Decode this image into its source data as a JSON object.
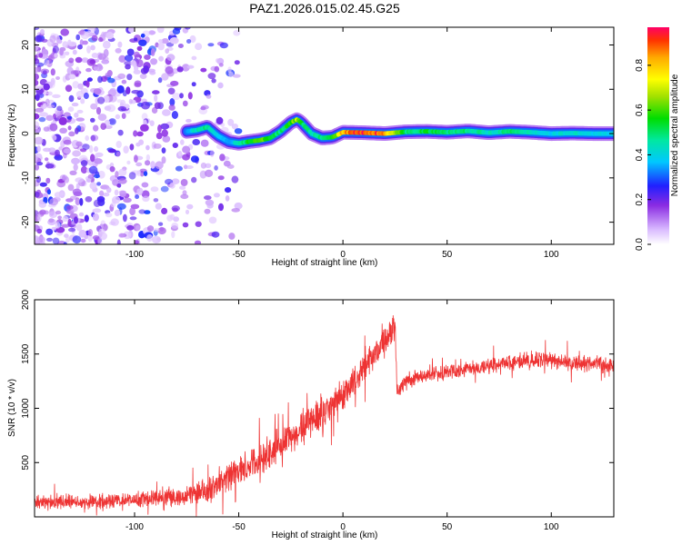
{
  "figure_title": "PAZ1.2026.015.02.45.G25",
  "chart_data": [
    {
      "type": "heatmap",
      "title": "",
      "xlabel": "Height of straight line (km)",
      "ylabel": "Frequency (Hz)",
      "xlim": [
        -148,
        130
      ],
      "ylim": [
        -25,
        24
      ],
      "xticks": [
        -100,
        -50,
        0,
        50,
        100
      ],
      "yticks": [
        -20,
        -10,
        0,
        10,
        20
      ],
      "colorbar": {
        "label": "Normalized spectral amplitude",
        "range": [
          0.0,
          0.97
        ],
        "ticks": [
          0.0,
          0.2,
          0.4,
          0.6,
          0.8
        ]
      },
      "ridge": {
        "description": "dominant frequency track",
        "x": [
          -75,
          -70,
          -65,
          -60,
          -55,
          -50,
          -45,
          -40,
          -35,
          -30,
          -25,
          -22,
          -20,
          -15,
          -10,
          -5,
          0,
          10,
          20,
          30,
          40,
          50,
          60,
          70,
          80,
          90,
          100,
          110,
          120,
          130
        ],
        "y": [
          0.5,
          0.8,
          1.5,
          -0.5,
          -1.8,
          -2.2,
          -1.8,
          -1.5,
          -1.0,
          0.5,
          2.5,
          3.2,
          2.5,
          0.0,
          -1.0,
          -0.8,
          0.3,
          0.2,
          0.0,
          0.4,
          0.5,
          0.3,
          0.6,
          0.2,
          0.5,
          0.3,
          0.0,
          0.1,
          0.0,
          0.0
        ],
        "amplitude": [
          0.35,
          0.45,
          0.5,
          0.4,
          0.35,
          0.45,
          0.55,
          0.65,
          0.55,
          0.5,
          0.6,
          0.7,
          0.55,
          0.45,
          0.5,
          0.55,
          0.85,
          0.95,
          0.9,
          0.5,
          0.55,
          0.5,
          0.5,
          0.45,
          0.5,
          0.45,
          0.4,
          0.45,
          0.4,
          0.4
        ]
      },
      "noise_region": {
        "x_range": [
          -148,
          -50
        ],
        "amplitude_range": [
          0.05,
          0.3
        ]
      }
    },
    {
      "type": "line",
      "title": "",
      "xlabel": "Height of straight line (km)",
      "ylabel": "SNR (10 * v/v)",
      "xlim": [
        -148,
        130
      ],
      "ylim": [
        0,
        2000
      ],
      "xticks": [
        -100,
        -50,
        0,
        50,
        100
      ],
      "yticks": [
        500,
        1000,
        1500,
        2000
      ],
      "series": [
        {
          "name": "SNR",
          "color": "#ee3333",
          "x": [
            -148,
            -130,
            -110,
            -90,
            -75,
            -65,
            -55,
            -45,
            -35,
            -25,
            -15,
            -5,
            5,
            15,
            22,
            25,
            26,
            30,
            40,
            50,
            60,
            70,
            80,
            90,
            100,
            110,
            120,
            130
          ],
          "y": [
            130,
            140,
            150,
            170,
            190,
            250,
            360,
            470,
            600,
            740,
            880,
            1030,
            1230,
            1480,
            1680,
            1720,
            1150,
            1250,
            1300,
            1330,
            1360,
            1390,
            1430,
            1450,
            1440,
            1420,
            1410,
            1400
          ],
          "noise_amplitude": [
            80,
            80,
            80,
            90,
            100,
            130,
            150,
            170,
            180,
            190,
            200,
            190,
            170,
            170,
            170,
            160,
            80,
            80,
            80,
            80,
            80,
            80,
            90,
            90,
            90,
            90,
            90,
            90
          ]
        }
      ]
    }
  ]
}
